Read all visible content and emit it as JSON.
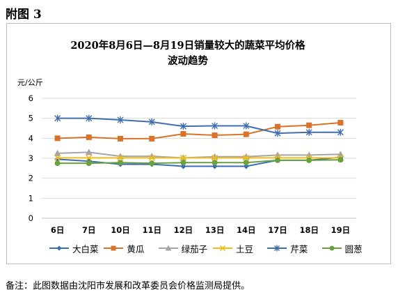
{
  "figure_label": "附图 3",
  "note": "备注：此图数据由沈阳市发展和改革委员会价格监测局提供。",
  "colors": {
    "大白菜": "#3a6db5",
    "黄瓜": "#d9722b",
    "绿茄子": "#a5a5a5",
    "土豆": "#f0be1b",
    "芹菜": "#3f6db0",
    "圆葱": "#6aa13c"
  },
  "chart_data": {
    "type": "line",
    "title_line1": "2020年8月6日—8月19日销量较大的蔬菜平均价格",
    "title_line2": "波动趋势",
    "ylabel": "元/公斤",
    "xlabel": "",
    "ylim": [
      0,
      6
    ],
    "yticks": [
      "0",
      "1",
      "2",
      "3",
      "4",
      "5",
      "6"
    ],
    "grid": true,
    "legend_position": "bottom",
    "categories": [
      "6日",
      "7日",
      "10日",
      "11日",
      "12日",
      "13日",
      "14日",
      "17日",
      "18日",
      "19日"
    ],
    "series": [
      {
        "name": "大白菜",
        "marker": "diamond",
        "values": [
          2.95,
          2.85,
          2.7,
          2.7,
          2.6,
          2.6,
          2.6,
          2.9,
          2.9,
          3.05
        ]
      },
      {
        "name": "黄瓜",
        "marker": "square",
        "values": [
          4.0,
          4.05,
          3.98,
          3.98,
          4.22,
          4.15,
          4.2,
          4.58,
          4.65,
          4.78
        ]
      },
      {
        "name": "绿茄子",
        "marker": "triangle",
        "values": [
          3.25,
          3.3,
          3.1,
          3.1,
          3.02,
          3.08,
          3.08,
          3.16,
          3.16,
          3.2
        ]
      },
      {
        "name": "土豆",
        "marker": "x",
        "values": [
          3.02,
          3.02,
          3.02,
          3.02,
          3.02,
          3.02,
          3.02,
          3.02,
          3.02,
          3.02
        ]
      },
      {
        "name": "芹菜",
        "marker": "star",
        "values": [
          5.0,
          5.0,
          4.92,
          4.82,
          4.6,
          4.62,
          4.62,
          4.25,
          4.3,
          4.3
        ]
      },
      {
        "name": "圆葱",
        "marker": "circle",
        "values": [
          2.75,
          2.75,
          2.78,
          2.75,
          2.78,
          2.78,
          2.78,
          2.9,
          2.9,
          2.92
        ]
      }
    ]
  }
}
